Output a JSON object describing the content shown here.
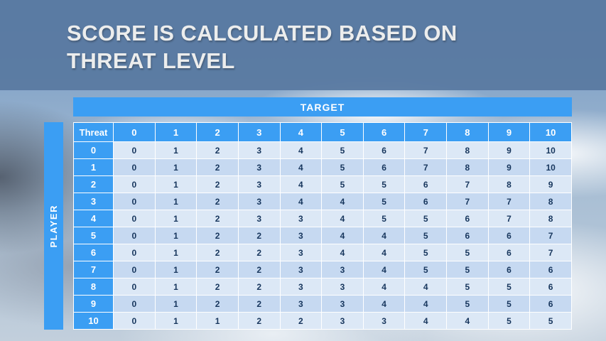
{
  "slide": {
    "title_line1": "SCORE IS CALCULATED BASED ON",
    "title_line2": "THREAT LEVEL"
  },
  "axes": {
    "target_label": "TARGET",
    "player_label": "PLAYER"
  },
  "chart_data": {
    "type": "table",
    "title": "Score matrix: player threat level (rows) vs target (columns)",
    "corner_label": "Threat",
    "column_headers": [
      "0",
      "1",
      "2",
      "3",
      "4",
      "5",
      "6",
      "7",
      "8",
      "9",
      "10"
    ],
    "rows": [
      {
        "threat": "0",
        "values": [
          0,
          1,
          2,
          3,
          4,
          5,
          6,
          7,
          8,
          9,
          10
        ]
      },
      {
        "threat": "1",
        "values": [
          0,
          1,
          2,
          3,
          4,
          5,
          6,
          7,
          8,
          9,
          10
        ]
      },
      {
        "threat": "2",
        "values": [
          0,
          1,
          2,
          3,
          4,
          5,
          5,
          6,
          7,
          8,
          9
        ]
      },
      {
        "threat": "3",
        "values": [
          0,
          1,
          2,
          3,
          4,
          4,
          5,
          6,
          7,
          7,
          8
        ]
      },
      {
        "threat": "4",
        "values": [
          0,
          1,
          2,
          3,
          3,
          4,
          5,
          5,
          6,
          7,
          8
        ]
      },
      {
        "threat": "5",
        "values": [
          0,
          1,
          2,
          2,
          3,
          4,
          4,
          5,
          6,
          6,
          7
        ]
      },
      {
        "threat": "6",
        "values": [
          0,
          1,
          2,
          2,
          3,
          4,
          4,
          5,
          5,
          6,
          7
        ]
      },
      {
        "threat": "7",
        "values": [
          0,
          1,
          2,
          2,
          3,
          3,
          4,
          5,
          5,
          6,
          6
        ]
      },
      {
        "threat": "8",
        "values": [
          0,
          1,
          2,
          2,
          3,
          3,
          4,
          4,
          5,
          5,
          6
        ]
      },
      {
        "threat": "9",
        "values": [
          0,
          1,
          2,
          2,
          3,
          3,
          4,
          4,
          5,
          5,
          6
        ]
      },
      {
        "threat": "10",
        "values": [
          0,
          1,
          1,
          2,
          2,
          3,
          3,
          4,
          4,
          5,
          5
        ]
      }
    ]
  },
  "colors": {
    "accent_blue": "#3b9ef3",
    "title_band": "rgba(88,120,160,0.93)",
    "row_light": "#dce8f6",
    "row_dark": "#c6d9f1",
    "cell_text": "#17365d"
  }
}
